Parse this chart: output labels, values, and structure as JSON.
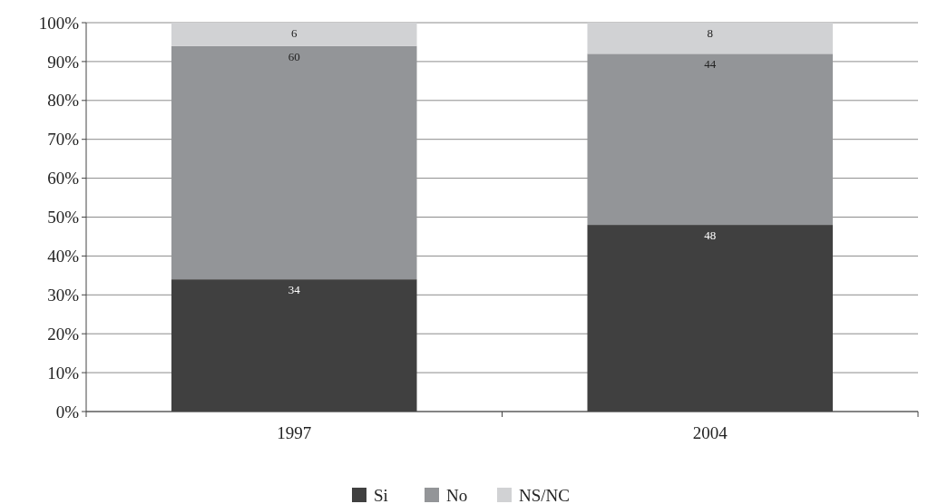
{
  "chart_data": {
    "type": "bar",
    "stacked": true,
    "categories": [
      "1997",
      "2004"
    ],
    "series": [
      {
        "name": "Si",
        "color": "#404040",
        "values": [
          34,
          48
        ]
      },
      {
        "name": "No",
        "color": "#939598",
        "values": [
          60,
          44
        ]
      },
      {
        "name": "NS/NC",
        "color": "#d1d2d4",
        "values": [
          6,
          8
        ]
      }
    ],
    "ylim": [
      0,
      100
    ],
    "yticks": [
      {
        "value": 0,
        "label": "0%"
      },
      {
        "value": 10,
        "label": "10%"
      },
      {
        "value": 20,
        "label": "20%"
      },
      {
        "value": 30,
        "label": "30%"
      },
      {
        "value": 40,
        "label": "40%"
      },
      {
        "value": 50,
        "label": "50%"
      },
      {
        "value": 60,
        "label": "60%"
      },
      {
        "value": 70,
        "label": "70%"
      },
      {
        "value": 80,
        "label": "80%"
      },
      {
        "value": 90,
        "label": "90%"
      },
      {
        "value": 100,
        "label": "100%"
      }
    ],
    "grid": "y",
    "legend": "bottom",
    "data_labels": true
  }
}
